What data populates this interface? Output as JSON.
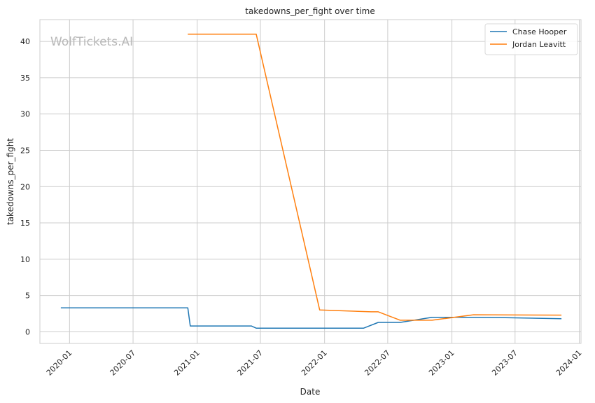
{
  "chart_data": {
    "type": "line",
    "title": "takedowns_per_fight over time",
    "xlabel": "Date",
    "ylabel": "takedowns_per_fight",
    "watermark": "WolfTickets.AI",
    "grid": true,
    "legend_position": "top-right",
    "x_ticks": [
      "2020-01",
      "2020-07",
      "2021-01",
      "2021-07",
      "2022-01",
      "2022-07",
      "2023-01",
      "2023-07",
      "2024-01"
    ],
    "y_ticks": [
      0,
      5,
      10,
      15,
      20,
      25,
      30,
      35,
      40
    ],
    "xlim": [
      "2019-10-08",
      "2024-01-06"
    ],
    "ylim": [
      -1.6,
      43.0
    ],
    "series": [
      {
        "name": "Chase Hooper",
        "color": "#1f77b4",
        "x": [
          "2019-12-07",
          "2020-12-05",
          "2020-12-12",
          "2021-06-05",
          "2021-06-19",
          "2022-04-23",
          "2022-06-04",
          "2022-08-06",
          "2022-11-05",
          "2023-03-04",
          "2023-06-03",
          "2023-11-11"
        ],
        "y": [
          3.3,
          3.3,
          0.8,
          0.8,
          0.5,
          0.5,
          1.3,
          1.3,
          2.0,
          2.0,
          1.95,
          1.8
        ]
      },
      {
        "name": "Jordan Leavitt",
        "color": "#ff7f0e",
        "x": [
          "2020-12-05",
          "2021-06-19",
          "2021-12-18",
          "2022-05-14",
          "2022-06-04",
          "2022-08-06",
          "2022-11-05",
          "2023-03-04",
          "2023-11-11"
        ],
        "y": [
          41.0,
          41.0,
          3.0,
          2.75,
          2.75,
          1.6,
          1.6,
          2.35,
          2.3
        ]
      }
    ]
  }
}
